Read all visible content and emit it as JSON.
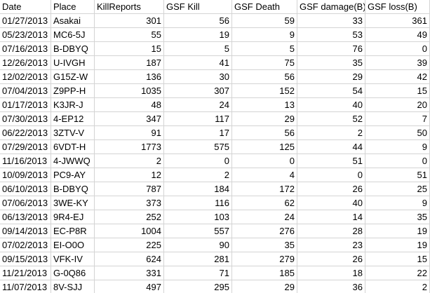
{
  "table": {
    "header": [
      "Date",
      "Place",
      "KillReports",
      "GSF Kill",
      "GSF Death",
      "GSF damage(B)",
      "GSF loss(B)"
    ],
    "rows": [
      [
        "01/27/2013",
        "Asakai",
        301,
        56,
        59,
        33,
        361
      ],
      [
        "05/23/2013",
        "MC6-5J",
        55,
        19,
        9,
        53,
        49
      ],
      [
        "07/16/2013",
        "B-DBYQ",
        15,
        5,
        5,
        76,
        0
      ],
      [
        "12/26/2013",
        "U-IVGH",
        187,
        41,
        75,
        35,
        39
      ],
      [
        "12/02/2013",
        "G15Z-W",
        136,
        30,
        56,
        29,
        42
      ],
      [
        "07/04/2013",
        "Z9PP-H",
        1035,
        307,
        152,
        54,
        15
      ],
      [
        "01/17/2013",
        "K3JR-J",
        48,
        24,
        13,
        40,
        20
      ],
      [
        "07/30/2013",
        "4-EP12",
        347,
        117,
        29,
        52,
        7
      ],
      [
        "06/22/2013",
        "3ZTV-V",
        91,
        17,
        56,
        2,
        50
      ],
      [
        "07/29/2013",
        "6VDT-H",
        1773,
        575,
        125,
        44,
        9
      ],
      [
        "11/16/2013",
        "4-JWWQ",
        2,
        0,
        0,
        51,
        0
      ],
      [
        "10/09/2013",
        "PC9-AY",
        12,
        2,
        4,
        0,
        51
      ],
      [
        "06/10/2013",
        "B-DBYQ",
        787,
        184,
        172,
        26,
        25
      ],
      [
        "07/06/2013",
        "3WE-KY",
        373,
        116,
        62,
        40,
        9
      ],
      [
        "06/13/2013",
        "9R4-EJ",
        252,
        103,
        24,
        14,
        35
      ],
      [
        "09/14/2013",
        "EC-P8R",
        1004,
        557,
        276,
        28,
        19
      ],
      [
        "07/02/2013",
        "EI-O0O",
        225,
        90,
        35,
        23,
        19
      ],
      [
        "09/15/2013",
        "VFK-IV",
        624,
        281,
        279,
        26,
        15
      ],
      [
        "11/21/2013",
        "G-0Q86",
        331,
        71,
        185,
        18,
        22
      ],
      [
        "11/07/2013",
        "8V-SJJ",
        497,
        295,
        29,
        36,
        2
      ]
    ]
  }
}
